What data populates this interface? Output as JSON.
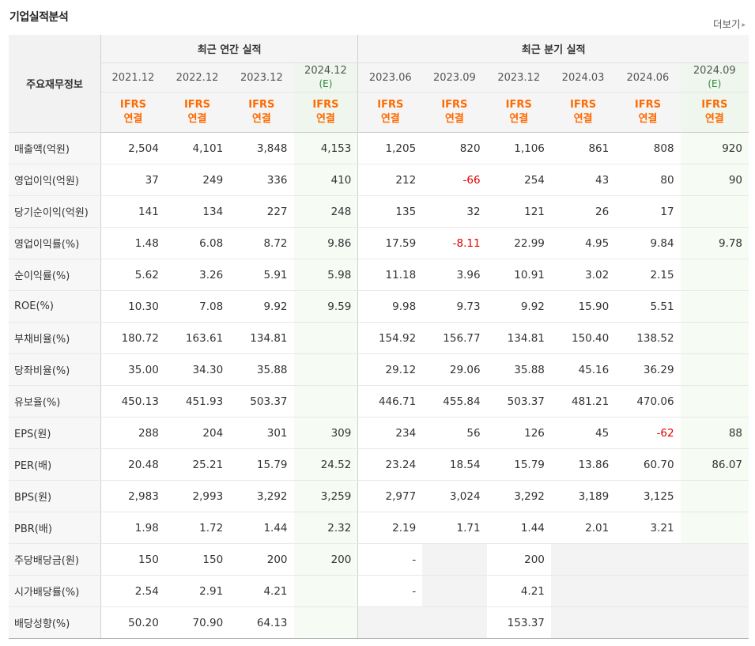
{
  "title": "기업실적분석",
  "more_label": "더보기",
  "more_arrow": "▸",
  "header": {
    "label_col": "주요재무정보",
    "annual_group": "최근 연간 실적",
    "quarter_group": "최근 분기 실적",
    "periods": [
      "2021.12",
      "2022.12",
      "2023.12",
      "2024.12",
      "2023.06",
      "2023.09",
      "2023.12",
      "2024.03",
      "2024.06",
      "2024.09"
    ],
    "est_marker": "(E)",
    "ifrs": "IFRS",
    "consolidated": "연결"
  },
  "rows": [
    {
      "label": "매출액(억원)",
      "values": [
        "2,504",
        "4,101",
        "3,848",
        "4,153",
        "1,205",
        "820",
        "1,106",
        "861",
        "808",
        "920"
      ]
    },
    {
      "label": "영업이익(억원)",
      "values": [
        "37",
        "249",
        "336",
        "410",
        "212",
        "-66",
        "254",
        "43",
        "80",
        "90"
      ]
    },
    {
      "label": "당기순이익(억원)",
      "values": [
        "141",
        "134",
        "227",
        "248",
        "135",
        "32",
        "121",
        "26",
        "17",
        ""
      ]
    },
    {
      "label": "영업이익률(%)",
      "values": [
        "1.48",
        "6.08",
        "8.72",
        "9.86",
        "17.59",
        "-8.11",
        "22.99",
        "4.95",
        "9.84",
        "9.78"
      ]
    },
    {
      "label": "순이익률(%)",
      "values": [
        "5.62",
        "3.26",
        "5.91",
        "5.98",
        "11.18",
        "3.96",
        "10.91",
        "3.02",
        "2.15",
        ""
      ]
    },
    {
      "label": "ROE(%)",
      "values": [
        "10.30",
        "7.08",
        "9.92",
        "9.59",
        "9.98",
        "9.73",
        "9.92",
        "15.90",
        "5.51",
        ""
      ]
    },
    {
      "label": "부채비율(%)",
      "values": [
        "180.72",
        "163.61",
        "134.81",
        "",
        "154.92",
        "156.77",
        "134.81",
        "150.40",
        "138.52",
        ""
      ]
    },
    {
      "label": "당좌비율(%)",
      "values": [
        "35.00",
        "34.30",
        "35.88",
        "",
        "29.12",
        "29.06",
        "35.88",
        "45.16",
        "36.29",
        ""
      ]
    },
    {
      "label": "유보율(%)",
      "values": [
        "450.13",
        "451.93",
        "503.37",
        "",
        "446.71",
        "455.84",
        "503.37",
        "481.21",
        "470.06",
        ""
      ]
    },
    {
      "label": "EPS(원)",
      "values": [
        "288",
        "204",
        "301",
        "309",
        "234",
        "56",
        "126",
        "45",
        "-62",
        "88"
      ]
    },
    {
      "label": "PER(배)",
      "values": [
        "20.48",
        "25.21",
        "15.79",
        "24.52",
        "23.24",
        "18.54",
        "15.79",
        "13.86",
        "60.70",
        "86.07"
      ]
    },
    {
      "label": "BPS(원)",
      "values": [
        "2,983",
        "2,993",
        "3,292",
        "3,259",
        "2,977",
        "3,024",
        "3,292",
        "3,189",
        "3,125",
        ""
      ]
    },
    {
      "label": "PBR(배)",
      "values": [
        "1.98",
        "1.72",
        "1.44",
        "2.32",
        "2.19",
        "1.71",
        "1.44",
        "2.01",
        "3.21",
        ""
      ]
    },
    {
      "label": "주당배당금(원)",
      "values": [
        "150",
        "150",
        "200",
        "200",
        "-",
        "",
        "200",
        "",
        "",
        ""
      ]
    },
    {
      "label": "시가배당률(%)",
      "values": [
        "2.54",
        "2.91",
        "4.21",
        "",
        "-",
        "",
        "4.21",
        "",
        "",
        ""
      ]
    },
    {
      "label": "배당성향(%)",
      "values": [
        "50.20",
        "70.90",
        "64.13",
        "",
        "",
        "",
        "153.37",
        "",
        "",
        ""
      ]
    }
  ],
  "colors": {
    "ifrs": "#ff6a00",
    "negative": "#e20000",
    "estimate_bg": "#f6fbf4",
    "estimate_text": "#2b8a3e"
  }
}
